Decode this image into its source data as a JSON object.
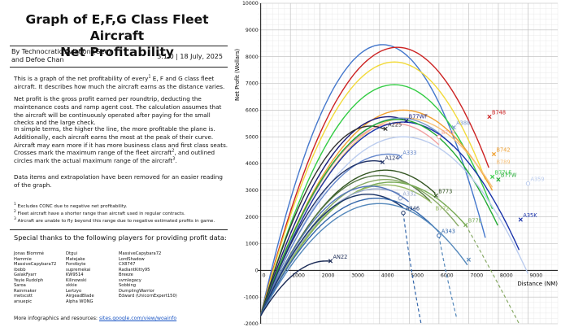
{
  "header": {
    "title_line1": "Graph of E,F,G Class Fleet Aircraft",
    "title_line2": "Net Profitability",
    "author_line1": "By Technocratic Aviation (Geo)",
    "author_line2": "and Defoe Chan",
    "version": "3.1.0 | 18 July, 2025"
  },
  "description": {
    "p1_a": "This is a graph of the net profitability of every",
    "p1_sup": "1",
    "p1_b": " E, F and G class fleet aircraft. It describes how much the aircraft earns as the distance varies.",
    "p2": "Net profit is the gross profit earned per roundtrip, deducting the maintenance costs and ramp agent cost. The calculation assumes that the aircraft will be continuously operated after paying for the small checks and the large check.",
    "p3_a": "In simple terms, the higher the line, the more profitable the plane is. Additionally, each aircraft earns the most at the peak of their curve. Aircraft may earn more if it has more business class and first class seats. Crosses mark the maximum range of the fleet aircraft",
    "p3_sup1": "2",
    "p3_b": ", and outlined circles mark the actual maximum range of the aircraft",
    "p3_sup2": "3",
    "p3_c": ".",
    "p4": "Data items and extrapolation have been removed for an easier reading of the graph."
  },
  "footnotes": {
    "f1_num": "1",
    "f1": " Excludes CONC due to negative net profitability.",
    "f2_num": "2",
    "f2": " Fleet aircraft have a shorter range than aircraft used in regular contracts.",
    "f3_num": "3",
    "f3": " Aircraft are unable to fly beyond this range due to negative estimated profits in game."
  },
  "thanks": {
    "title": "Special thanks to the following players for providing profit data:",
    "col1": [
      "Jonas Blommé",
      "Hammie",
      "MassiveCapybara72",
      "ibobb",
      "GalakFyarr",
      "Yeyie Rudolph",
      "Saroa",
      "Rainmaker",
      "metscott",
      "arsuepic"
    ],
    "col2": [
      "Dtgui",
      "Matejake",
      "Forstbyte",
      "supremekai",
      "KW9514",
      "Kilinowski",
      "xkkie",
      "Lertzyo",
      "AirgeadBlade",
      "Alpha WONG"
    ],
    "col3": [
      "MassiveCapybara72",
      "LordShadow",
      "CX8747",
      "RadiantKitty95",
      "Breeze",
      "svmlegacy",
      "Sobbing",
      "DumplingWarrior",
      "Edward (UnicornExpert150)"
    ]
  },
  "footer": {
    "more_label": "More infographics and resources:",
    "more_link": "sites.google.com/view/woainfo"
  },
  "chart_data": {
    "type": "line",
    "xlabel": "Distance (NM)",
    "ylabel": "Net Profit (Wollars)",
    "xlim": [
      -100,
      10000
    ],
    "ylim": [
      -2000,
      10000
    ],
    "xticks": [
      0,
      1000,
      2000,
      3000,
      4000,
      5000,
      6000,
      7000,
      8000,
      9000
    ],
    "yticks": [
      -2000,
      -1000,
      0,
      1000,
      2000,
      3000,
      4000,
      5000,
      6000,
      7000,
      8000,
      9000,
      10000
    ],
    "grid": true,
    "series": [
      {
        "name": "",
        "color": "#4477cc",
        "peak_x": 4100,
        "peak_y": 8450,
        "end_x": 7600,
        "end_y": 5900,
        "range_marker": "none"
      },
      {
        "name": "B748",
        "color": "#cc2222",
        "peak_x": 4600,
        "peak_y": 8350,
        "end_x": 7700,
        "end_y": 5750,
        "range_marker": "cross"
      },
      {
        "name": "",
        "color": "#f2da3a",
        "peak_x": 4500,
        "peak_y": 7800,
        "end_x": 7600,
        "end_y": 5200,
        "range_marker": "none"
      },
      {
        "name": "B77LF",
        "color": "#33cc44",
        "peak_x": 4500,
        "peak_y": 6950,
        "end_x": 7800,
        "end_y": 3500,
        "range_marker": "cross"
      },
      {
        "name": "B742",
        "color": "#f0a030",
        "peak_x": 4800,
        "peak_y": 6000,
        "end_x": 7850,
        "end_y": 4350,
        "range_marker": "cross"
      },
      {
        "name": "B789",
        "color": "#f7c27a",
        "peak_x": 4900,
        "peak_y": 5700,
        "end_x": 7850,
        "end_y": 3900,
        "range_marker": "none"
      },
      {
        "name": "B77WF",
        "color": "#1a1a7a",
        "peak_x": 4300,
        "peak_y": 5750,
        "end_x": 4900,
        "end_y": 5600,
        "range_marker": "cross"
      },
      {
        "name": "A388",
        "color": "#7799cc",
        "peak_x": 4700,
        "peak_y": 5700,
        "end_x": 6500,
        "end_y": 5350,
        "range_marker": "cross"
      },
      {
        "name": "B748",
        "color": "#f2a0a0",
        "peak_x": 4500,
        "peak_y": 5500,
        "end_x": 6000,
        "end_y": 5000,
        "range_marker": "circle"
      },
      {
        "name": "A225",
        "color": "#333333",
        "peak_x": 3700,
        "peak_y": 5400,
        "end_x": 4200,
        "end_y": 5300,
        "range_marker": "cross"
      },
      {
        "name": "A35K",
        "color": "#1a33aa",
        "peak_x": 4800,
        "peak_y": 5550,
        "end_x": 8750,
        "end_y": 1900,
        "range_marker": "cross"
      },
      {
        "name": "B77W",
        "color": "#22aa33",
        "peak_x": 4600,
        "peak_y": 5650,
        "end_x": 8000,
        "end_y": 3400,
        "range_marker": "cross"
      },
      {
        "name": "A359",
        "color": "#bbccee",
        "peak_x": 4800,
        "peak_y": 5000,
        "end_x": 9000,
        "end_y": 3250,
        "range_marker": "circle"
      },
      {
        "name": "A333",
        "color": "#6688cc",
        "peak_x": 4300,
        "peak_y": 4350,
        "end_x": 4700,
        "end_y": 4250,
        "range_marker": "cross"
      },
      {
        "name": "A124",
        "color": "#223366",
        "peak_x": 3800,
        "peak_y": 4100,
        "end_x": 4100,
        "end_y": 4050,
        "range_marker": "cross"
      },
      {
        "name": "B773",
        "color": "#335522",
        "peak_x": 4200,
        "peak_y": 3750,
        "end_x": 5900,
        "end_y": 2800,
        "range_marker": "cross"
      },
      {
        "name": "",
        "color": "#557744",
        "peak_x": 4000,
        "peak_y": 3550,
        "end_x": 5700,
        "end_y": 2700,
        "range_marker": "none"
      },
      {
        "name": "",
        "color": "#88aa66",
        "peak_x": 4200,
        "peak_y": 3400,
        "end_x": 6700,
        "end_y": 1800,
        "range_marker": "none"
      },
      {
        "name": "B77L",
        "color": "#77aa55",
        "peak_x": 4400,
        "peak_y": 3300,
        "end_x": 6900,
        "end_y": 1700,
        "range_marker": "cross"
      },
      {
        "name": "B772",
        "color": "#99bb66",
        "peak_x": 4200,
        "peak_y": 3200,
        "end_x": 5800,
        "end_y": 2150,
        "range_marker": "none"
      },
      {
        "name": "A332",
        "color": "#99aacc",
        "peak_x": 3900,
        "peak_y": 3050,
        "end_x": 4700,
        "end_y": 2700,
        "range_marker": "circle"
      },
      {
        "name": "",
        "color": "#5577bb",
        "peak_x": 3700,
        "peak_y": 3150,
        "end_x": 5000,
        "end_y": 2700,
        "range_marker": "none"
      },
      {
        "name": "A346",
        "color": "#1a3366",
        "peak_x": 3600,
        "peak_y": 2850,
        "end_x": 4800,
        "end_y": 2150,
        "range_marker": "circle"
      },
      {
        "name": "A343",
        "color": "#3366aa",
        "peak_x": 3900,
        "peak_y": 2700,
        "end_x": 6000,
        "end_y": 1300,
        "range_marker": "circle"
      },
      {
        "name": "",
        "color": "#5588bb",
        "peak_x": 4000,
        "peak_y": 2500,
        "end_x": 7000,
        "end_y": 400,
        "range_marker": "cross"
      },
      {
        "name": "AN22",
        "color": "#1a2a55",
        "peak_x": 2200,
        "peak_y": 350,
        "end_x": 2350,
        "end_y": 350,
        "range_marker": "cross"
      }
    ],
    "extrapolated_dashes": [
      {
        "color": "#3366aa",
        "from_x": 4800,
        "from_y": 2150,
        "to_x": 5400,
        "to_y": -2000
      },
      {
        "color": "#5588bb",
        "from_x": 6000,
        "from_y": 1300,
        "to_x": 6600,
        "to_y": -1800
      },
      {
        "color": "#88aa66",
        "from_x": 6900,
        "from_y": 1700,
        "to_x": 8700,
        "to_y": -2000
      }
    ]
  }
}
